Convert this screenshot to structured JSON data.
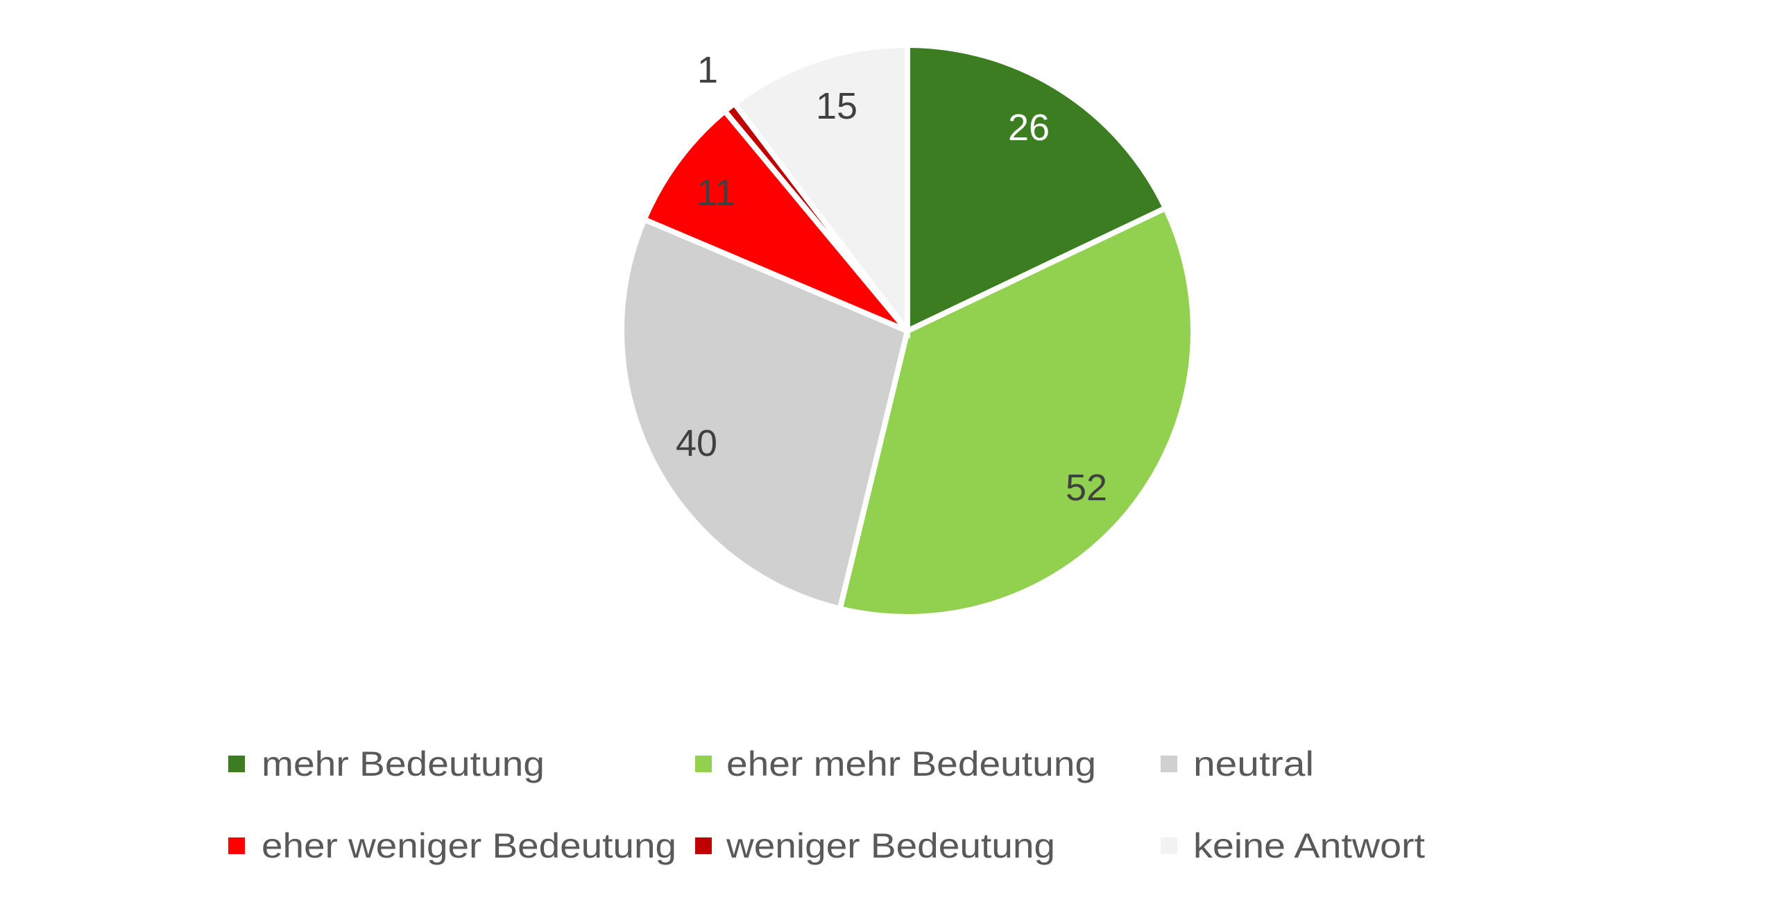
{
  "chart_data": {
    "type": "pie",
    "title": "",
    "categories": [
      "mehr Bedeutung",
      "eher mehr Bedeutung",
      "neutral",
      "eher weniger Bedeutung",
      "weniger Bedeutung",
      "keine Antwort"
    ],
    "values": [
      26,
      52,
      40,
      11,
      1,
      15
    ],
    "colors": [
      "#3C7D22",
      "#92D050",
      "#D0D0D0",
      "#FF0000",
      "#C00000",
      "#F2F2F2"
    ],
    "start_angle": "12 o'clock, clockwise",
    "data_labels": [
      "26",
      "52",
      "40",
      "11",
      "1",
      "15"
    ],
    "legend_position": "bottom",
    "legend_layout": "3 columns x 2 rows"
  },
  "legend": {
    "items": [
      {
        "label": "mehr Bedeutung",
        "color": "#3C7D22"
      },
      {
        "label": "eher mehr Bedeutung",
        "color": "#92D050"
      },
      {
        "label": "neutral",
        "color": "#D0D0D0"
      },
      {
        "label": "eher weniger Bedeutung",
        "color": "#FF0000"
      },
      {
        "label": "weniger Bedeutung",
        "color": "#C00000"
      },
      {
        "label": "keine Antwort",
        "color": "#F2F2F2"
      }
    ]
  }
}
